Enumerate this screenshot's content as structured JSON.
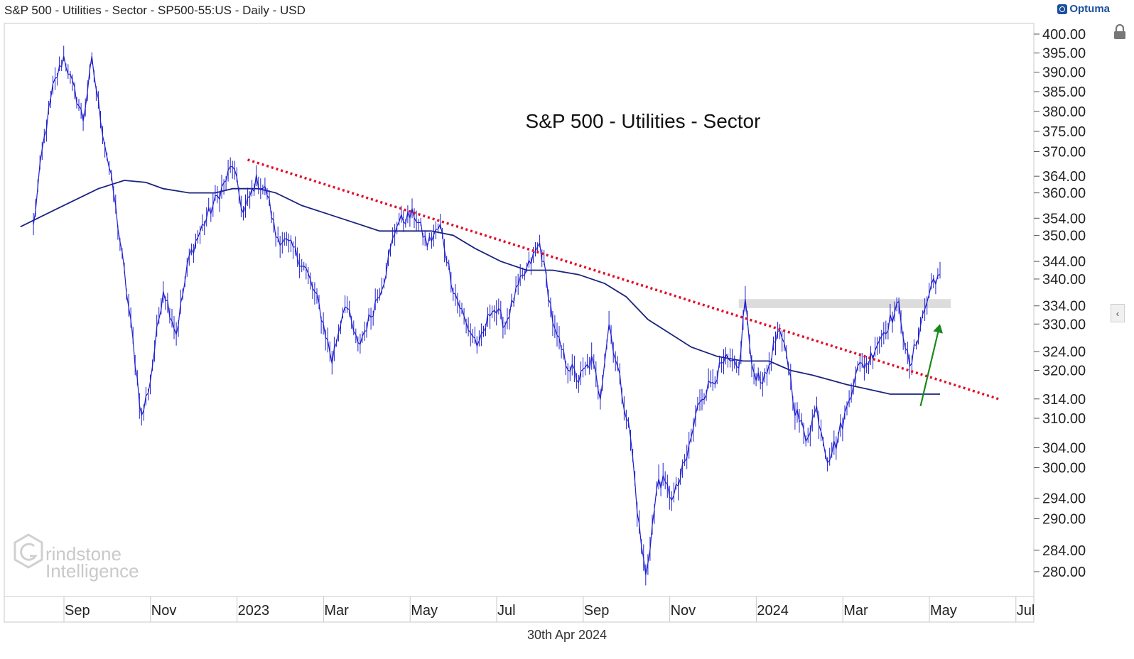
{
  "header": {
    "title": "S&P 500 - Utilities - Sector - SP500-55:US - Daily - USD",
    "brand": "Optuma"
  },
  "footer": {
    "date": "30th Apr 2024"
  },
  "colors": {
    "price": "#1f1fd0",
    "moving_average": "#1a237e",
    "trendline": "#e0102a",
    "arrow": "#1a8a1a",
    "zone": "#dcdcdc",
    "watermark": "#c9c9c9"
  },
  "watermark": {
    "line1": "rindstone",
    "line2": "Intelligence"
  },
  "chart_data": {
    "type": "line",
    "title": "S&P 500 - Utilities - Sector",
    "series_names": [
      "price",
      "200-day moving average"
    ],
    "ylim": [
      276,
      404
    ],
    "y_ticks": [
      {
        "label": "400.00",
        "value": 400
      },
      {
        "label": "395.00",
        "value": 395
      },
      {
        "label": "390.00",
        "value": 390
      },
      {
        "label": "385.00",
        "value": 385
      },
      {
        "label": "380.00",
        "value": 380
      },
      {
        "label": "375.00",
        "value": 375
      },
      {
        "label": "370.00",
        "value": 370
      },
      {
        "label": "364.00",
        "value": 364
      },
      {
        "label": "360.00",
        "value": 360
      },
      {
        "label": "354.00",
        "value": 354
      },
      {
        "label": "350.00",
        "value": 350
      },
      {
        "label": "344.00",
        "value": 344
      },
      {
        "label": "340.00",
        "value": 340
      },
      {
        "label": "334.00",
        "value": 334
      },
      {
        "label": "330.00",
        "value": 330
      },
      {
        "label": "324.00",
        "value": 324
      },
      {
        "label": "320.00",
        "value": 320
      },
      {
        "label": "314.00",
        "value": 314
      },
      {
        "label": "310.00",
        "value": 310
      },
      {
        "label": "304.00",
        "value": 304
      },
      {
        "label": "300.00",
        "value": 300
      },
      {
        "label": "294.00",
        "value": 294
      },
      {
        "label": "290.00",
        "value": 290
      },
      {
        "label": "284.00",
        "value": 284
      },
      {
        "label": "280.00",
        "value": 280
      }
    ],
    "x_ticks": [
      {
        "label": "Sep",
        "t": 1.0
      },
      {
        "label": "Nov",
        "t": 3.0
      },
      {
        "label": "2023",
        "t": 5.0
      },
      {
        "label": "Mar",
        "t": 7.0
      },
      {
        "label": "May",
        "t": 9.0
      },
      {
        "label": "Jul",
        "t": 11.0
      },
      {
        "label": "Sep",
        "t": 13.0
      },
      {
        "label": "Nov",
        "t": 15.0
      },
      {
        "label": "2024",
        "t": 17.0
      },
      {
        "label": "Mar",
        "t": 19.0
      },
      {
        "label": "May",
        "t": 21.0
      },
      {
        "label": "Jul",
        "t": 23.0
      }
    ],
    "x_range": [
      -0.3,
      24.1
    ],
    "price": [
      [
        0.0,
        352
      ],
      [
        0.2,
        370
      ],
      [
        0.45,
        386
      ],
      [
        0.7,
        394
      ],
      [
        0.95,
        385
      ],
      [
        1.15,
        378
      ],
      [
        1.35,
        393
      ],
      [
        1.6,
        375
      ],
      [
        1.85,
        360
      ],
      [
        2.05,
        345
      ],
      [
        2.3,
        326
      ],
      [
        2.5,
        310
      ],
      [
        2.7,
        318
      ],
      [
        3.0,
        338
      ],
      [
        3.3,
        328
      ],
      [
        3.6,
        345
      ],
      [
        3.9,
        352
      ],
      [
        4.2,
        358
      ],
      [
        4.4,
        362
      ],
      [
        4.6,
        367
      ],
      [
        4.85,
        355
      ],
      [
        5.15,
        363
      ],
      [
        5.4,
        360
      ],
      [
        5.6,
        350
      ],
      [
        6.0,
        347
      ],
      [
        6.3,
        342
      ],
      [
        6.6,
        334
      ],
      [
        6.9,
        322
      ],
      [
        7.2,
        335
      ],
      [
        7.5,
        325
      ],
      [
        7.8,
        332
      ],
      [
        8.1,
        340
      ],
      [
        8.4,
        353
      ],
      [
        8.8,
        355
      ],
      [
        9.1,
        348
      ],
      [
        9.4,
        352
      ],
      [
        9.7,
        338
      ],
      [
        10.0,
        330
      ],
      [
        10.3,
        325
      ],
      [
        10.6,
        334
      ],
      [
        10.9,
        330
      ],
      [
        11.2,
        338
      ],
      [
        11.5,
        344
      ],
      [
        11.7,
        348
      ],
      [
        11.85,
        340
      ],
      [
        12.05,
        328
      ],
      [
        12.3,
        322
      ],
      [
        12.6,
        318
      ],
      [
        12.9,
        322
      ],
      [
        13.1,
        315
      ],
      [
        13.3,
        330
      ],
      [
        13.55,
        318
      ],
      [
        13.8,
        306
      ],
      [
        14.0,
        288
      ],
      [
        14.15,
        279
      ],
      [
        14.45,
        298
      ],
      [
        14.8,
        294
      ],
      [
        15.1,
        302
      ],
      [
        15.4,
        314
      ],
      [
        15.7,
        318
      ],
      [
        16.0,
        322
      ],
      [
        16.3,
        320
      ],
      [
        16.45,
        336
      ],
      [
        16.6,
        320
      ],
      [
        16.9,
        318
      ],
      [
        17.2,
        328
      ],
      [
        17.4,
        324
      ],
      [
        17.6,
        312
      ],
      [
        17.85,
        306
      ],
      [
        18.1,
        312
      ],
      [
        18.35,
        302
      ],
      [
        18.55,
        305
      ],
      [
        18.8,
        312
      ],
      [
        19.0,
        320
      ],
      [
        19.3,
        322
      ],
      [
        19.5,
        326
      ],
      [
        19.75,
        330
      ],
      [
        20.0,
        334
      ],
      [
        20.25,
        320
      ],
      [
        20.5,
        330
      ],
      [
        20.8,
        340
      ],
      [
        20.95,
        341
      ]
    ],
    "moving_average": [
      [
        -0.3,
        352
      ],
      [
        0.5,
        356
      ],
      [
        1.5,
        361
      ],
      [
        2.1,
        363
      ],
      [
        2.6,
        362.5
      ],
      [
        3.0,
        361
      ],
      [
        3.6,
        360
      ],
      [
        4.2,
        360
      ],
      [
        4.6,
        361
      ],
      [
        5.2,
        361
      ],
      [
        5.6,
        360
      ],
      [
        6.2,
        357
      ],
      [
        6.8,
        355
      ],
      [
        7.4,
        353
      ],
      [
        8.0,
        351
      ],
      [
        8.6,
        351
      ],
      [
        9.2,
        351
      ],
      [
        9.7,
        350
      ],
      [
        10.2,
        347
      ],
      [
        10.8,
        344
      ],
      [
        11.4,
        342
      ],
      [
        12.0,
        342
      ],
      [
        12.6,
        341
      ],
      [
        13.2,
        339
      ],
      [
        13.7,
        336
      ],
      [
        14.2,
        331
      ],
      [
        14.7,
        328
      ],
      [
        15.2,
        325
      ],
      [
        15.8,
        323
      ],
      [
        16.4,
        322
      ],
      [
        17.0,
        322
      ],
      [
        17.5,
        320
      ],
      [
        18.0,
        319
      ],
      [
        18.4,
        318
      ],
      [
        18.8,
        317
      ],
      [
        19.3,
        316
      ],
      [
        19.8,
        315
      ],
      [
        20.3,
        315
      ],
      [
        20.95,
        315
      ]
    ],
    "trendline": {
      "start": [
        4.95,
        368
      ],
      "end": [
        22.3,
        314
      ],
      "style": "dotted"
    },
    "resistance_zone": {
      "t_start": 16.3,
      "t_end": 21.2,
      "y_low": 333.5,
      "y_high": 335.5
    },
    "arrow": {
      "from": [
        20.5,
        312.5
      ],
      "to": [
        20.95,
        330
      ]
    }
  }
}
